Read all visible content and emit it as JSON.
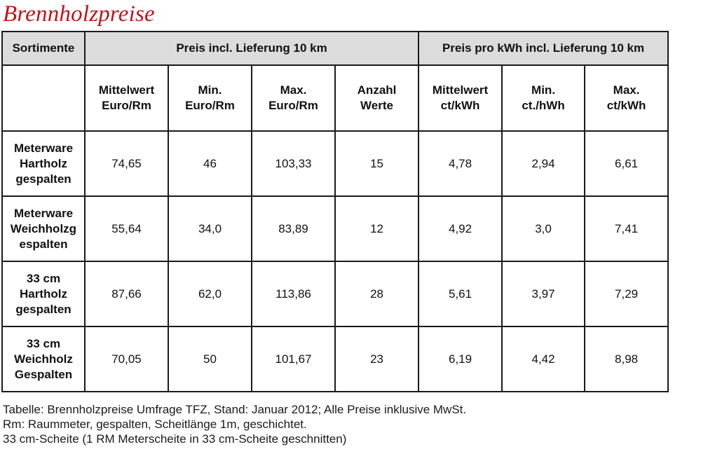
{
  "title": "Brennholzpreise",
  "table": {
    "group_headers": {
      "sortimente": "Sortimente",
      "price_group": "Preis incl. Lieferung 10 km",
      "kwh_group": "Preis pro kWh incl. Lieferung 10 km"
    },
    "sub_headers": [
      [
        "Mittelwert",
        "Euro/Rm"
      ],
      [
        "Min.",
        "Euro/Rm"
      ],
      [
        "Max.",
        "Euro/Rm"
      ],
      [
        "Anzahl",
        "Werte"
      ],
      [
        "Mittelwert",
        "ct/kWh"
      ],
      [
        "Min.",
        "ct./hWh"
      ],
      [
        "Max.",
        "ct/kWh"
      ]
    ],
    "rows": [
      {
        "label": [
          "Meterware",
          "Hartholz",
          "gespalten"
        ],
        "values": [
          "74,65",
          "46",
          "103,33",
          "15",
          "4,78",
          "2,94",
          "6,61"
        ]
      },
      {
        "label": [
          "Meterware",
          "Weichholzg",
          "espalten"
        ],
        "values": [
          "55,64",
          "34,0",
          "83,89",
          "12",
          "4,92",
          "3,0",
          "7,41"
        ]
      },
      {
        "label": [
          "33 cm",
          "Hartholz",
          "gespalten"
        ],
        "values": [
          "87,66",
          "62,0",
          "113,86",
          "28",
          "5,61",
          "3,97",
          "7,29"
        ]
      },
      {
        "label": [
          "33 cm",
          "Weichholz",
          "Gespalten"
        ],
        "values": [
          "70,05",
          "50",
          "101,67",
          "23",
          "6,19",
          "4,42",
          "8,98"
        ]
      }
    ]
  },
  "footnotes": [
    "Tabelle: Brennholzpreise Umfrage TFZ, Stand: Januar 2012; Alle Preise inklusive MwSt.",
    "Rm: Raummeter, gespalten, Scheitlänge 1m, geschichtet.",
    "33 cm-Scheite (1 RM Meterscheite in 33 cm-Scheite geschnitten)"
  ]
}
